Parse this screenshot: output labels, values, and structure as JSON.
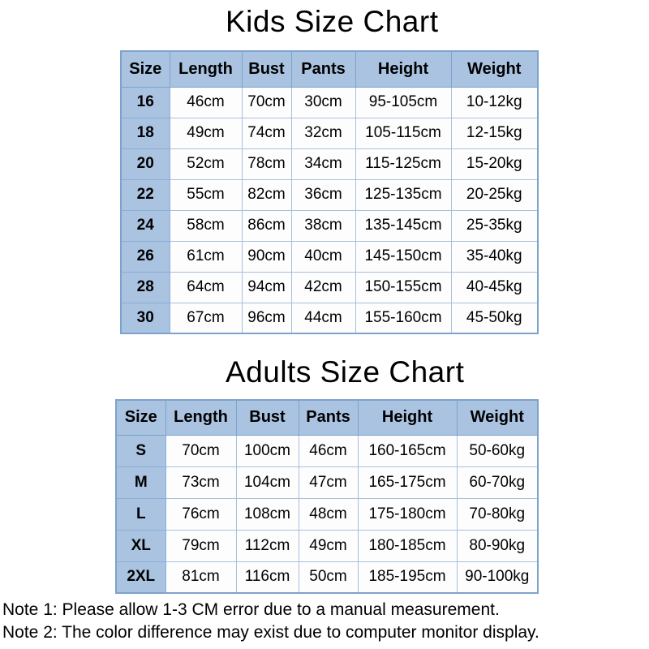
{
  "colors": {
    "background": "#ffffff",
    "text": "#000000",
    "header_bg": "#a9c3e1",
    "table_border": "#7da2cc",
    "size_col_border": "#8caed6",
    "data_cell_border": "#a8bfdd",
    "cell_bg": "#fdfdfe"
  },
  "chart_data": [
    {
      "type": "table",
      "title": "Kids Size Chart",
      "columns": [
        "Size",
        "Length",
        "Bust",
        "Pants",
        "Height",
        "Weight"
      ],
      "rows": [
        [
          "16",
          "46cm",
          "70cm",
          "30cm",
          "95-105cm",
          "10-12kg"
        ],
        [
          "18",
          "49cm",
          "74cm",
          "32cm",
          "105-115cm",
          "12-15kg"
        ],
        [
          "20",
          "52cm",
          "78cm",
          "34cm",
          "115-125cm",
          "15-20kg"
        ],
        [
          "22",
          "55cm",
          "82cm",
          "36cm",
          "125-135cm",
          "20-25kg"
        ],
        [
          "24",
          "58cm",
          "86cm",
          "38cm",
          "135-145cm",
          "25-35kg"
        ],
        [
          "26",
          "61cm",
          "90cm",
          "40cm",
          "145-150cm",
          "35-40kg"
        ],
        [
          "28",
          "64cm",
          "94cm",
          "42cm",
          "150-155cm",
          "40-45kg"
        ],
        [
          "30",
          "67cm",
          "96cm",
          "44cm",
          "155-160cm",
          "45-50kg"
        ]
      ]
    },
    {
      "type": "table",
      "title": "Adults Size Chart",
      "columns": [
        "Size",
        "Length",
        "Bust",
        "Pants",
        "Height",
        "Weight"
      ],
      "rows": [
        [
          "S",
          "70cm",
          "100cm",
          "46cm",
          "160-165cm",
          "50-60kg"
        ],
        [
          "M",
          "73cm",
          "104cm",
          "47cm",
          "165-175cm",
          "60-70kg"
        ],
        [
          "L",
          "76cm",
          "108cm",
          "48cm",
          "175-180cm",
          "70-80kg"
        ],
        [
          "XL",
          "79cm",
          "112cm",
          "49cm",
          "180-185cm",
          "80-90kg"
        ],
        [
          "2XL",
          "81cm",
          "116cm",
          "50cm",
          "185-195cm",
          "90-100kg"
        ]
      ]
    }
  ],
  "notes": [
    "Note 1: Please allow 1-3 CM error due to a manual measurement.",
    "Note 2: The color difference may exist due to computer monitor display."
  ]
}
